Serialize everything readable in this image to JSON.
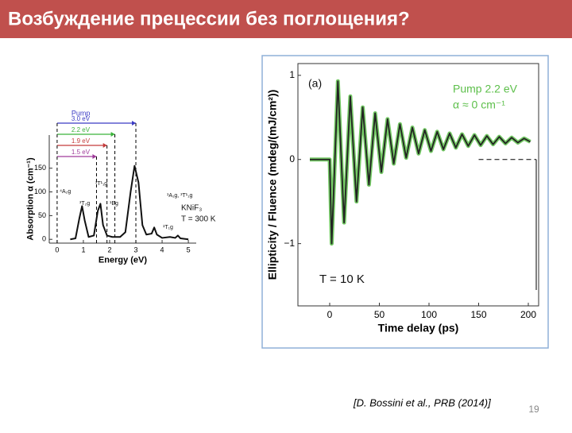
{
  "header": {
    "title": "Возбуждение прецессии без поглощения?"
  },
  "citation": "[D. Bossini et al., PRB (2014)]",
  "page_number": "19",
  "chart_data": [
    {
      "type": "line",
      "x_label": "Energy (eV)",
      "y_label": "Absorption α (cm⁻¹)",
      "x": [
        0.5,
        0.7,
        0.85,
        0.95,
        1.05,
        1.2,
        1.4,
        1.55,
        1.65,
        1.75,
        1.9,
        2.1,
        2.4,
        2.6,
        2.8,
        2.95,
        3.1,
        3.25,
        3.4,
        3.6,
        3.7,
        3.8,
        4.0,
        4.3,
        4.5,
        4.6,
        4.7,
        5.0
      ],
      "series": [
        {
          "color": "#111111",
          "values": [
            0,
            2,
            45,
            70,
            40,
            5,
            8,
            60,
            75,
            30,
            8,
            5,
            5,
            15,
            100,
            155,
            120,
            30,
            10,
            12,
            25,
            10,
            3,
            5,
            3,
            8,
            2,
            0
          ]
        }
      ],
      "xlim": [
        -0.3,
        5.3
      ],
      "ylim": [
        -8,
        178
      ],
      "xticks": [
        0,
        1,
        2,
        3,
        4,
        5
      ],
      "yticks": [
        0,
        50,
        100,
        150
      ],
      "pump_title": "Pump",
      "pump": [
        {
          "label": "3.0 eV",
          "value": 3.0,
          "color": "#3b3bc4"
        },
        {
          "label": "2.2 eV",
          "value": 2.2,
          "color": "#3bb33b"
        },
        {
          "label": "1.9 eV",
          "value": 1.9,
          "color": "#c43b3b"
        },
        {
          "label": "1.5 eV",
          "value": 1.5,
          "color": "#a03b9a"
        }
      ],
      "annotations": [
        "⁴A₂g",
        "³T₂g",
        "³T¹₁g",
        "¹Eg",
        "¹A₁g, ³T¹₁g",
        "¹T₁g",
        "KNiF₃",
        "T = 300 K"
      ]
    },
    {
      "type": "line",
      "x_label": "Time delay (ps)",
      "y_label": "Ellipticity / Fluence (mdeg/(mJ/cm²))",
      "x": [
        -20,
        -10,
        0,
        2,
        8.25,
        14.5,
        20.75,
        27,
        33.25,
        39.5,
        45.75,
        52,
        58.25,
        64.5,
        70.75,
        77,
        83.25,
        89.5,
        95.75,
        102,
        108.25,
        114.5,
        120.75,
        127,
        133.25,
        139.5,
        145.75,
        152,
        158.25,
        164.5,
        170.75,
        177,
        183.25,
        189.5,
        195.75,
        202
      ],
      "series": [
        {
          "color": "#222222",
          "values": [
            0,
            0,
            0,
            -1.0,
            0.93,
            -0.75,
            0.75,
            -0.5,
            0.62,
            -0.3,
            0.55,
            -0.15,
            0.48,
            -0.05,
            0.42,
            0.02,
            0.38,
            0.07,
            0.35,
            0.1,
            0.33,
            0.12,
            0.31,
            0.14,
            0.3,
            0.16,
            0.29,
            0.17,
            0.28,
            0.18,
            0.27,
            0.19,
            0.26,
            0.2,
            0.25,
            0.21
          ]
        }
      ],
      "data_color": "#5cbf4a",
      "xlim": [
        -32,
        210.4
      ],
      "ylim": [
        -1.74,
        1.14
      ],
      "xticks": [
        0,
        50,
        100,
        150,
        200
      ],
      "yticks": [
        {
          "value": -1,
          "label": "−1"
        },
        0,
        1
      ],
      "annotations": [
        "(a)",
        "Pump 2.2 eV",
        "α ≈ 0 cm⁻¹",
        "T = 10 K"
      ]
    }
  ]
}
